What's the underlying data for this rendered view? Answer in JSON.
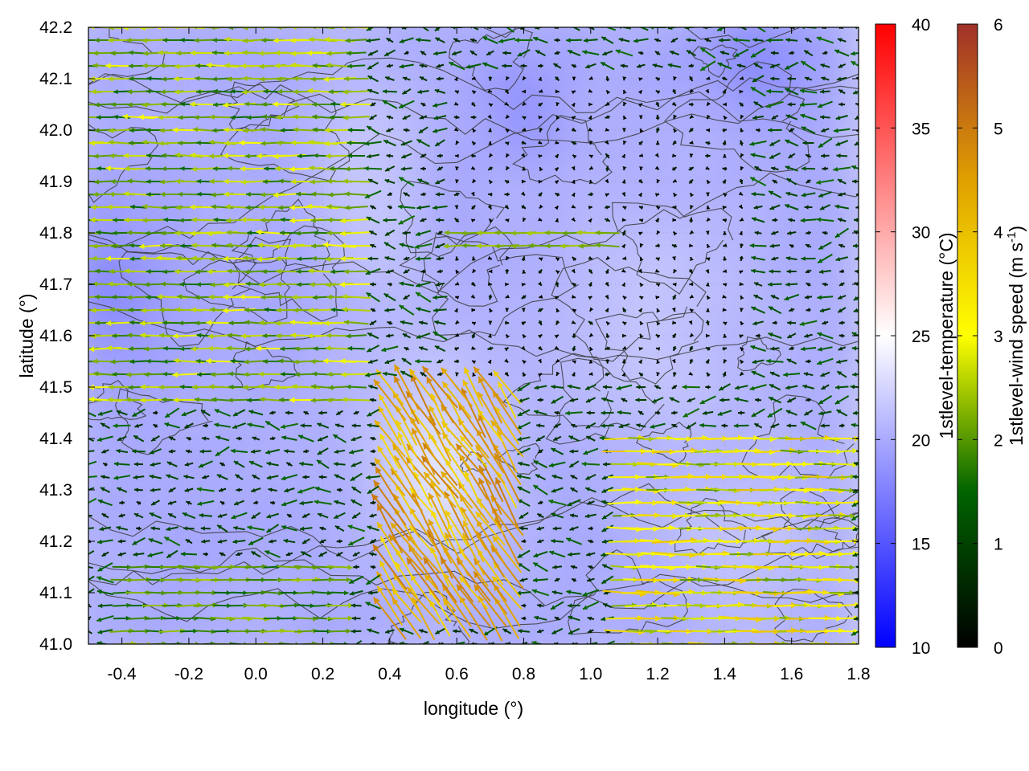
{
  "chart_data": {
    "type": "heatmap",
    "overlays": [
      "contour",
      "wind-vectors"
    ],
    "xlabel": "longitude (°)",
    "ylabel": "latitude (°)",
    "xlim": [
      -0.5,
      1.8
    ],
    "ylim": [
      41.0,
      42.2
    ],
    "x_ticks": [
      "-0.4",
      "-0.2",
      "0.0",
      "0.2",
      "0.4",
      "0.6",
      "0.8",
      "1.0",
      "1.2",
      "1.4",
      "1.6",
      "1.8"
    ],
    "y_ticks": [
      "41.0",
      "41.1",
      "41.2",
      "41.3",
      "41.4",
      "41.5",
      "41.6",
      "41.7",
      "41.8",
      "41.9",
      "42.0",
      "42.1",
      "42.2"
    ],
    "grid": true,
    "temperature_colorbar": {
      "label": "1stlevel-temperature (°C)",
      "range": [
        10,
        40
      ],
      "ticks": [
        "10",
        "15",
        "20",
        "25",
        "30",
        "35",
        "40"
      ],
      "colors": [
        "#0000ff",
        "#ffffff",
        "#ff0000"
      ]
    },
    "wind_colorbar": {
      "label_main": "1stlevel-wind speed (m s",
      "label_sup": "-1",
      "label_end": ")",
      "range": [
        0,
        6
      ],
      "ticks": [
        "0",
        "1",
        "2",
        "3",
        "4",
        "5",
        "6"
      ],
      "colors": [
        "#000000",
        "#006400",
        "#ffff00",
        "#e0a000",
        "#a0302a"
      ]
    },
    "temperature_field_range": [
      15,
      25
    ],
    "wind_features": [
      {
        "region": "west",
        "lon_range": [
          -0.5,
          0.3
        ],
        "lat_range": [
          41.45,
          42.2
        ],
        "direction": "westward",
        "speed_range": [
          1.5,
          3
        ]
      },
      {
        "region": "central-north",
        "lon_range": [
          0.55,
          1.1
        ],
        "lat_range": [
          41.75,
          41.8
        ],
        "direction": "westward",
        "speed_range": [
          2,
          2.5
        ]
      },
      {
        "region": "central-hotspot",
        "lon_range": [
          0.35,
          0.8
        ],
        "lat_range": [
          41.05,
          41.5
        ],
        "direction": "north-westward",
        "speed_range": [
          3.5,
          5
        ]
      },
      {
        "region": "south-west",
        "lon_range": [
          -0.4,
          0.25
        ],
        "lat_range": [
          41.0,
          41.15
        ],
        "direction": "eastward",
        "speed_range": [
          1.5,
          2.5
        ]
      },
      {
        "region": "east",
        "lon_range": [
          1.1,
          1.8
        ],
        "lat_range": [
          41.0,
          41.4
        ],
        "direction": "eastward",
        "speed_range": [
          2,
          4
        ]
      },
      {
        "region": "calm-center",
        "lon_range": [
          0.6,
          1.5
        ],
        "lat_range": [
          41.5,
          42.1
        ],
        "direction": "variable",
        "speed_range": [
          0,
          0.5
        ]
      }
    ]
  }
}
